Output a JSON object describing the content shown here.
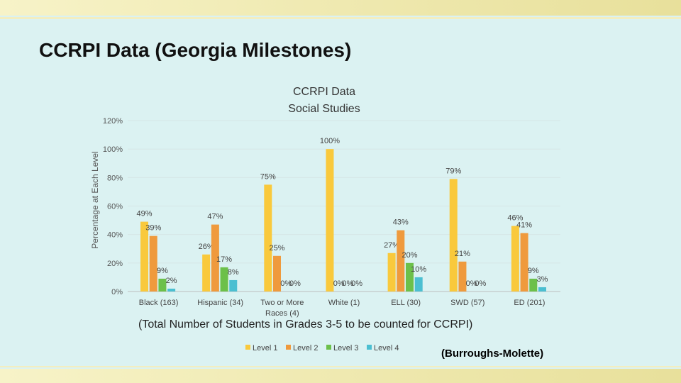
{
  "slide": {
    "title": "CCRPI Data (Georgia Milestones)",
    "note": "(Total Number of Students in Grades 3-5 to be counted for CCRPI)",
    "credit": "(Burroughs-Molette)"
  },
  "chart_data": {
    "type": "bar",
    "title": "CCRPI Data",
    "subtitle": "Social Studies",
    "xlabel": "",
    "ylabel": "Percentage at Each Level",
    "ylim": [
      0,
      120
    ],
    "yticks": [
      0,
      20,
      40,
      60,
      80,
      100,
      120
    ],
    "ytick_labels": [
      "0%",
      "20%",
      "40%",
      "60%",
      "80%",
      "100%",
      "120%"
    ],
    "grid": true,
    "legend_position": "bottom",
    "categories": [
      "Black (163)",
      "Hispanic (34)",
      "Two or More Races (4)",
      "White (1)",
      "ELL (30)",
      "SWD (57)",
      "ED (201)"
    ],
    "category_lines": [
      [
        "Black (163)"
      ],
      [
        "Hispanic (34)"
      ],
      [
        "Two or More",
        "Races (4)"
      ],
      [
        "White (1)"
      ],
      [
        "ELL (30)"
      ],
      [
        "SWD (57)"
      ],
      [
        "ED (201)"
      ]
    ],
    "series": [
      {
        "name": "Level 1",
        "color": "#f9c93c",
        "values": [
          49,
          26,
          75,
          100,
          27,
          79,
          46
        ],
        "labels": [
          "49%",
          "26%",
          "75%",
          "100%",
          "27%",
          "79%",
          "46%"
        ]
      },
      {
        "name": "Level 2",
        "color": "#ef9a3d",
        "values": [
          39,
          47,
          25,
          0,
          43,
          21,
          41
        ],
        "labels": [
          "39%",
          "47%",
          "25%",
          "0%",
          "43%",
          "21%",
          "41%"
        ]
      },
      {
        "name": "Level 3",
        "color": "#6cc04a",
        "values": [
          9,
          17,
          0,
          0,
          20,
          0,
          9
        ],
        "labels": [
          "9%",
          "17%",
          "0%",
          "0%",
          "20%",
          "0%",
          "9%"
        ]
      },
      {
        "name": "Level 4",
        "color": "#4bbfd1",
        "values": [
          2,
          8,
          0,
          0,
          10,
          0,
          3
        ],
        "labels": [
          "2%",
          "8%",
          "0%",
          "0%",
          "10%",
          "0%",
          "3%"
        ]
      }
    ]
  }
}
